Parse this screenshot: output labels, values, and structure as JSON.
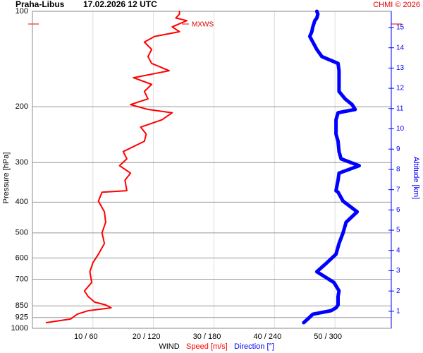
{
  "chart_data": {
    "type": "line",
    "title": "Praha-Libus",
    "subtitle": "17.02.2026 12 UTC",
    "credit": "CHMI © 2026",
    "annotation": "MXWS",
    "xlabel": "WIND",
    "ylabel": "Pressure [hPa]",
    "y2label": "Altitude [km]",
    "log_y": true,
    "grid": true,
    "xlim": [
      0,
      59.3
    ],
    "x2lim": [
      0,
      355.8
    ],
    "xticks": [
      {
        "value": 10,
        "label": "10 / 60"
      },
      {
        "value": 20,
        "label": "20 / 120"
      },
      {
        "value": 30,
        "label": "30 / 180"
      },
      {
        "value": 40,
        "label": "40 / 240"
      },
      {
        "value": 50,
        "label": "50 / 300"
      }
    ],
    "ylim": [
      1000,
      100
    ],
    "yticks": [
      100,
      200,
      300,
      400,
      500,
      600,
      700,
      850,
      925,
      1000
    ],
    "y2lim": [
      0.16,
      15.8
    ],
    "y2ticks": [
      1,
      2,
      3,
      4,
      5,
      6,
      7,
      8,
      9,
      10,
      11,
      12,
      13,
      14,
      15
    ],
    "y": [
      960,
      935,
      903,
      880,
      862,
      844,
      827,
      794,
      762,
      717,
      663,
      621,
      584,
      540,
      500,
      463,
      429,
      397,
      372,
      368,
      341,
      324,
      307,
      292,
      277,
      257,
      244,
      232,
      220,
      209,
      204,
      197,
      189,
      179,
      170,
      162,
      154,
      146,
      139,
      132,
      125,
      120,
      116,
      112,
      107,
      105,
      102,
      100
    ],
    "series": [
      {
        "name": "Speed [m/s]",
        "color": "#ff0000",
        "axis": "x",
        "values": [
          2.3,
          6.3,
          7.4,
          9.2,
          13.0,
          12.1,
          10.3,
          9.2,
          8.6,
          9.8,
          9.5,
          10.0,
          10.9,
          11.9,
          11.5,
          12.1,
          11.9,
          10.9,
          11.5,
          15.6,
          15.3,
          16.2,
          14.4,
          15.6,
          15.0,
          18.5,
          18.8,
          17.9,
          21.4,
          23.1,
          19.1,
          16.2,
          19.1,
          18.5,
          19.7,
          16.7,
          22.6,
          19.7,
          19.1,
          19.7,
          18.5,
          20.2,
          24.3,
          23.1,
          25.5,
          23.7,
          24.3,
          24.3
        ]
      },
      {
        "name": "Direction [°]",
        "color": "#0000ff",
        "axis": "x2",
        "values": [
          269,
          273,
          278,
          296,
          301,
          303,
          303,
          303,
          304,
          299,
          282,
          292,
          301,
          304,
          308,
          311,
          322,
          308,
          303,
          301,
          303,
          304,
          324,
          306,
          304,
          303,
          301,
          301,
          301,
          303,
          320,
          317,
          310,
          304,
          304,
          304,
          304,
          303,
          287,
          282,
          278,
          275,
          277,
          278,
          280,
          282,
          283,
          282
        ]
      }
    ]
  }
}
